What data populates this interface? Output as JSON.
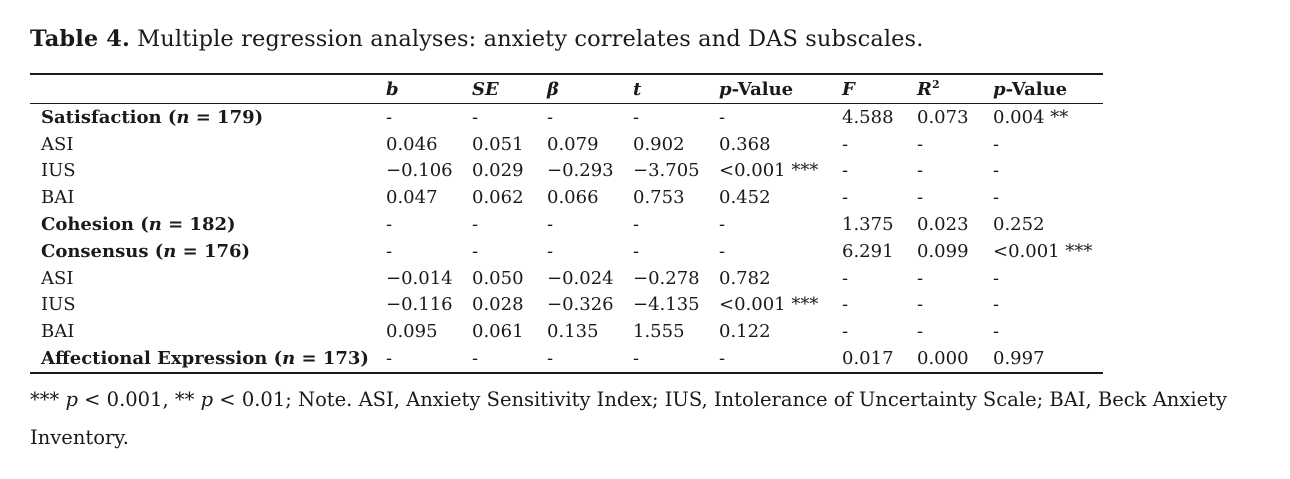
{
  "caption": {
    "label": "Table 4.",
    "text": "Multiple regression analyses: anxiety correlates and DAS subscales."
  },
  "table": {
    "headers": {
      "b": "b",
      "se": "SE",
      "beta": "β",
      "t": "t",
      "p1_italic": "p",
      "p1_rest": "-Value",
      "f": "F",
      "r2_base": "R",
      "r2_sup": "2",
      "p2_italic": "p",
      "p2_rest": "-Value"
    },
    "rows": [
      {
        "label": "Satisfaction (",
        "n": "n",
        "label_end": " = 179)",
        "group": true,
        "cells": [
          "-",
          "-",
          "-",
          "-",
          "-",
          "4.588",
          "0.073",
          "0.004 **"
        ]
      },
      {
        "label": "ASI",
        "group": false,
        "cells": [
          "0.046",
          "0.051",
          "0.079",
          "0.902",
          "0.368",
          "-",
          "-",
          "-"
        ]
      },
      {
        "label": "IUS",
        "group": false,
        "cells": [
          "−0.106",
          "0.029",
          "−0.293",
          "−3.705",
          "<0.001 ***",
          "-",
          "-",
          "-"
        ]
      },
      {
        "label": "BAI",
        "group": false,
        "cells": [
          "0.047",
          "0.062",
          "0.066",
          "0.753",
          "0.452",
          "-",
          "-",
          "-"
        ]
      },
      {
        "label": "Cohesion (",
        "n": "n",
        "label_end": " = 182)",
        "group": true,
        "cells": [
          "-",
          "-",
          "-",
          "-",
          "-",
          "1.375",
          "0.023",
          "0.252"
        ]
      },
      {
        "label": "Consensus (",
        "n": "n",
        "label_end": " = 176)",
        "group": true,
        "cells": [
          "-",
          "-",
          "-",
          "-",
          "-",
          "6.291",
          "0.099",
          "<0.001 ***"
        ]
      },
      {
        "label": "ASI",
        "group": false,
        "cells": [
          "−0.014",
          "0.050",
          "−0.024",
          "−0.278",
          "0.782",
          "-",
          "-",
          "-"
        ]
      },
      {
        "label": "IUS",
        "group": false,
        "cells": [
          "−0.116",
          "0.028",
          "−0.326",
          "−4.135",
          "<0.001 ***",
          "-",
          "-",
          "-"
        ]
      },
      {
        "label": "BAI",
        "group": false,
        "cells": [
          "0.095",
          "0.061",
          "0.135",
          "1.555",
          "0.122",
          "-",
          "-",
          "-"
        ]
      },
      {
        "label": "Affectional Expression (",
        "n": "n",
        "label_end": " = 173)",
        "group": true,
        "cells": [
          "-",
          "-",
          "-",
          "-",
          "-",
          "0.017",
          "0.000",
          "0.997"
        ]
      }
    ]
  },
  "note": {
    "part1": "*** ",
    "p_a": "p",
    "part2": " < 0.001, ** ",
    "p_b": "p",
    "part3": " < 0.01; Note. ASI, Anxiety Sensitivity Index; IUS, Intolerance of Uncertainty Scale; BAI, Beck Anxiety Inventory."
  }
}
